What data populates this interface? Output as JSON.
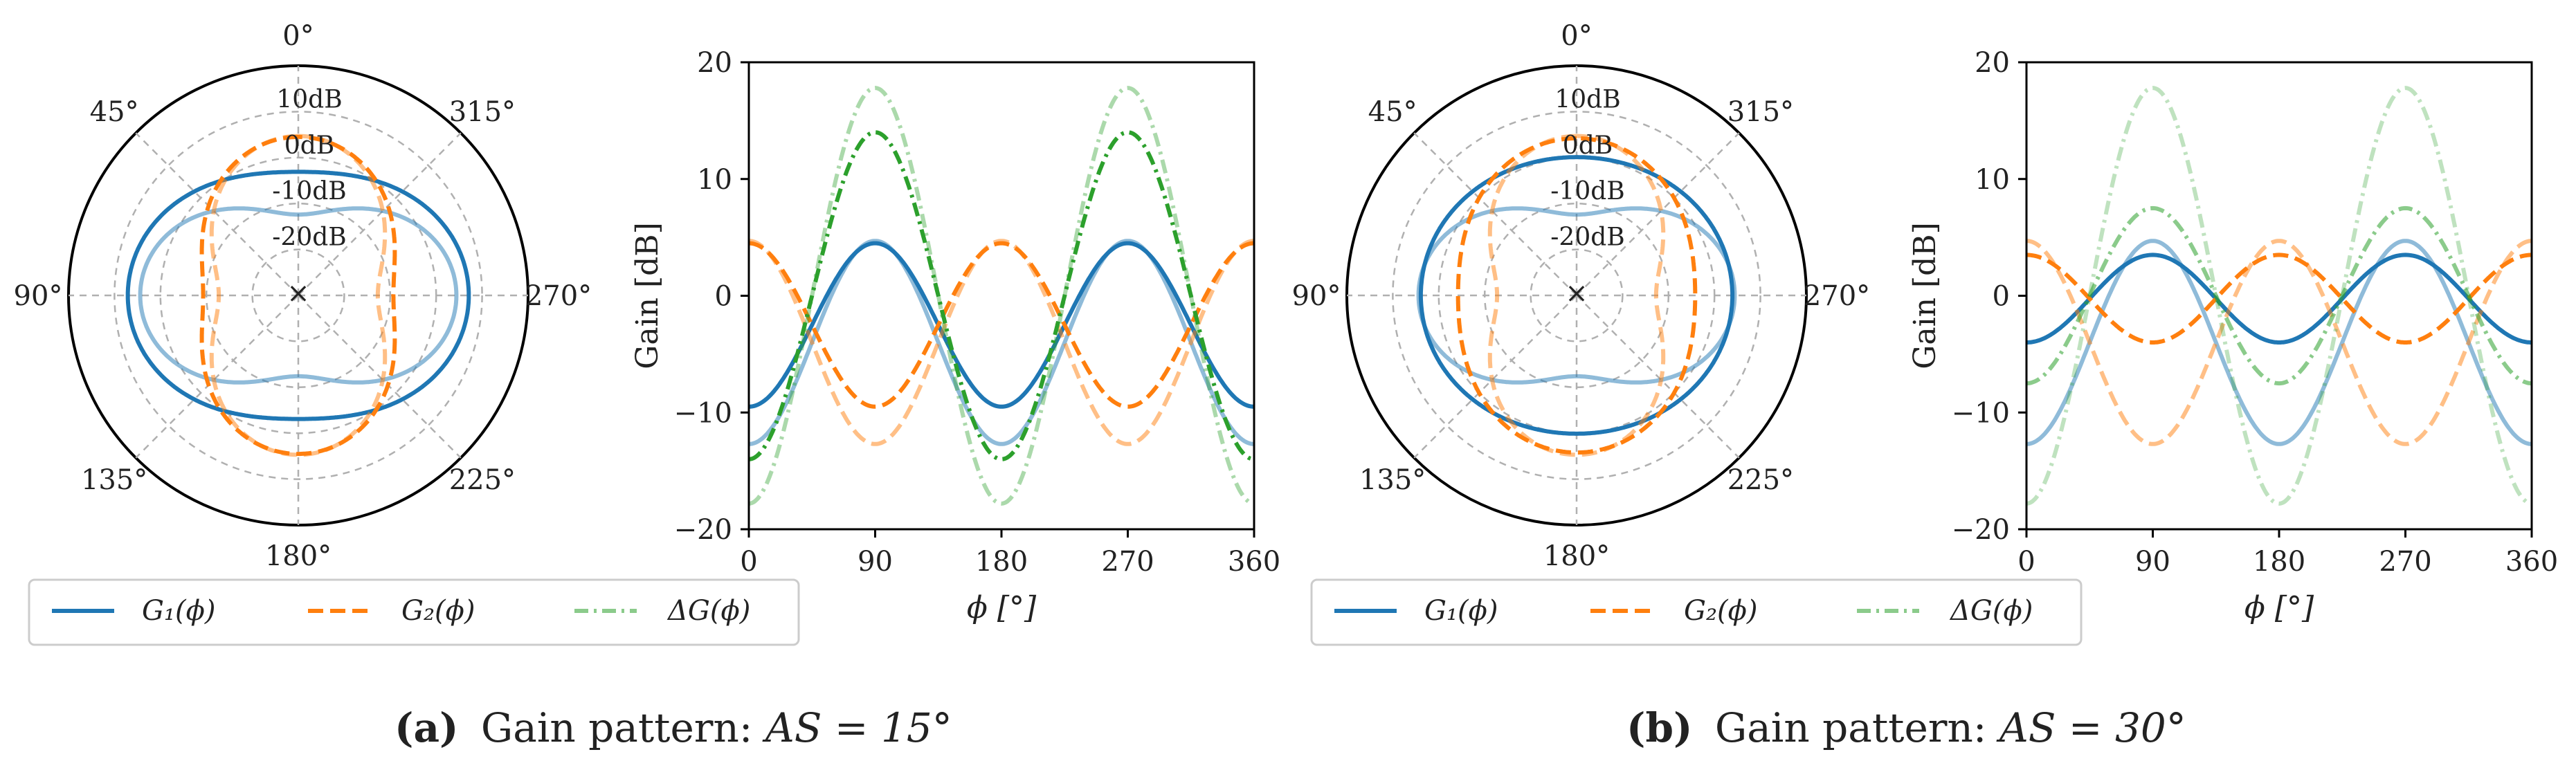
{
  "colors": {
    "blue": "#1f77b4",
    "orange": "#ff7f0e",
    "green": "#2ca02c"
  },
  "chart_data": [
    {
      "type": "polar",
      "panel": "a",
      "angle_ticks": [
        "0°",
        "45°",
        "90°",
        "135°",
        "180°",
        "225°",
        "270°",
        "315°"
      ],
      "angle_tick_values": [
        0,
        45,
        90,
        135,
        180,
        225,
        270,
        315
      ],
      "radial_ticks": [
        "10dB",
        "0dB",
        "-10dB",
        "-20dB"
      ],
      "radial_tick_values": [
        10,
        0,
        -10,
        -20
      ],
      "rlim": [
        -30,
        20
      ],
      "series": [
        {
          "name": "G1 (AS=15°)",
          "a": 2.0,
          "b": -5.1,
          "color": "blue",
          "style": "solid",
          "alpha": 1.0
        },
        {
          "name": "G1 (AS=0°)",
          "a": -4.0,
          "b": -8.4,
          "color": "blue",
          "style": "solid",
          "alpha": 0.5
        },
        {
          "name": "G2 (AS=15°)",
          "a": -2.4,
          "b": 6.9,
          "color": "orange",
          "style": "dashed",
          "alpha": 1.0
        },
        {
          "name": "G2 (AS=0°)",
          "a": -4.0,
          "b": 8.7,
          "color": "orange",
          "style": "dashed",
          "alpha": 0.5
        }
      ]
    },
    {
      "type": "line",
      "panel": "a",
      "xlabel": "ϕ [°]",
      "ylabel": "Gain [dB]",
      "xlim": [
        0,
        360
      ],
      "ylim": [
        -20,
        20
      ],
      "xticks": [
        "0",
        "90",
        "180",
        "270",
        "360"
      ],
      "xtick_values": [
        0,
        90,
        180,
        270,
        360
      ],
      "yticks": [
        "20",
        "10",
        "0",
        "−10",
        "−20"
      ],
      "ytick_values": [
        20,
        10,
        0,
        -10,
        -20
      ],
      "series": [
        {
          "name": "G1 (AS=15°)",
          "a": -2.5,
          "b": -7.0,
          "color": "blue",
          "style": "solid",
          "alpha": 1.0
        },
        {
          "name": "G1 (AS=0°)",
          "a": -4.0,
          "b": -8.7,
          "color": "blue",
          "style": "solid",
          "alpha": 0.5
        },
        {
          "name": "G2 (AS=15°)",
          "a": -2.5,
          "b": 7.0,
          "color": "orange",
          "style": "dashed",
          "alpha": 1.0
        },
        {
          "name": "G2 (AS=0°)",
          "a": -4.0,
          "b": 8.7,
          "color": "orange",
          "style": "dashed",
          "alpha": 0.5
        },
        {
          "name": "ΔG (AS=15°)",
          "a": 0,
          "b": -14.0,
          "color": "green",
          "style": "dashdot",
          "alpha": 1.0
        },
        {
          "name": "ΔG (AS=0°)",
          "a": 0,
          "b": -17.8,
          "color": "green",
          "style": "dashdot",
          "alpha": 0.4
        }
      ]
    },
    {
      "type": "polar",
      "panel": "b",
      "angle_ticks": [
        "0°",
        "45°",
        "90°",
        "135°",
        "180°",
        "225°",
        "270°",
        "315°"
      ],
      "angle_tick_values": [
        0,
        45,
        90,
        135,
        180,
        225,
        270,
        315
      ],
      "radial_ticks": [
        "10dB",
        "0dB",
        "-10dB",
        "-20dB"
      ],
      "radial_tick_values": [
        10,
        0,
        -10,
        -20
      ],
      "rlim": [
        -30,
        20
      ],
      "series": [
        {
          "name": "G1 (AS=30°)",
          "a": 2.0,
          "b": -1.9,
          "color": "blue",
          "style": "solid",
          "alpha": 1.0
        },
        {
          "name": "G1 (AS=0°)",
          "a": -4.0,
          "b": -8.4,
          "color": "blue",
          "style": "solid",
          "alpha": 0.5
        },
        {
          "name": "G2 (AS=30°)",
          "a": 0.0,
          "b": 4.2,
          "color": "orange",
          "style": "dashed",
          "alpha": 1.0
        },
        {
          "name": "G2 (AS=0°)",
          "a": -4.0,
          "b": 8.7,
          "color": "orange",
          "style": "dashed",
          "alpha": 0.5
        }
      ]
    },
    {
      "type": "line",
      "panel": "b",
      "xlabel": "ϕ [°]",
      "ylabel": "Gain [dB]",
      "xlim": [
        0,
        360
      ],
      "ylim": [
        -20,
        20
      ],
      "xticks": [
        "0",
        "90",
        "180",
        "270",
        "360"
      ],
      "xtick_values": [
        0,
        90,
        180,
        270,
        360
      ],
      "yticks": [
        "20",
        "10",
        "0",
        "−10",
        "−20"
      ],
      "ytick_values": [
        20,
        10,
        0,
        -10,
        -20
      ],
      "series": [
        {
          "name": "G1 (AS=30°)",
          "a": -0.25,
          "b": -3.75,
          "color": "blue",
          "style": "solid",
          "alpha": 1.0
        },
        {
          "name": "G1 (AS=0°)",
          "a": -4.0,
          "b": -8.7,
          "color": "blue",
          "style": "solid",
          "alpha": 0.5
        },
        {
          "name": "G2 (AS=30°)",
          "a": -0.25,
          "b": 3.75,
          "color": "orange",
          "style": "dashed",
          "alpha": 1.0
        },
        {
          "name": "G2 (AS=0°)",
          "a": -4.0,
          "b": 8.7,
          "color": "orange",
          "style": "dashed",
          "alpha": 0.5
        },
        {
          "name": "ΔG (AS=30°)",
          "a": 0,
          "b": -7.5,
          "color": "green",
          "style": "dashdot",
          "alpha": 0.55
        },
        {
          "name": "ΔG (AS=0°)",
          "a": 0,
          "b": -17.8,
          "color": "green",
          "style": "dashdot",
          "alpha": 0.3
        }
      ]
    }
  ],
  "legend": {
    "g1": "G₁(ϕ)",
    "g2": "G₂(ϕ)",
    "dg": "ΔG(ϕ)"
  },
  "captions": {
    "a_label": "(a)",
    "a_text": "Gain pattern: ",
    "a_as": "AS = 15°",
    "b_label": "(b)",
    "b_text": "Gain pattern: ",
    "b_as": "AS = 30°"
  }
}
